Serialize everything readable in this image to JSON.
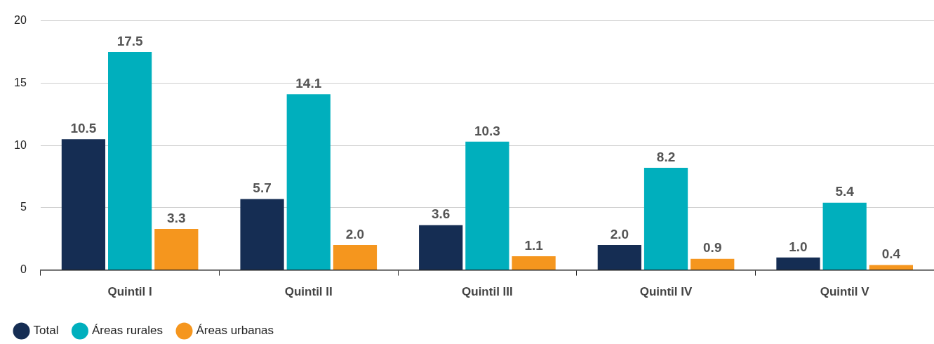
{
  "chart_data": {
    "type": "bar",
    "categories": [
      "Quintil I",
      "Quintil II",
      "Quintil III",
      "Quintil IV",
      "Quintil V"
    ],
    "series": [
      {
        "name": "Total",
        "color": "#152d53",
        "values": [
          10.5,
          5.7,
          3.6,
          2.0,
          1.0
        ],
        "value_labels": [
          "10.5",
          "5.7",
          "3.6",
          "2.0",
          "1.0"
        ]
      },
      {
        "name": "Áreas rurales",
        "color": "#00afbd",
        "values": [
          17.5,
          14.1,
          10.3,
          8.2,
          5.4
        ],
        "value_labels": [
          "17.5",
          "14.1",
          "10.3",
          "8.2",
          "5.4"
        ]
      },
      {
        "name": "Áreas urbanas",
        "color": "#f5961e",
        "values": [
          3.3,
          2.0,
          1.1,
          0.9,
          0.4
        ],
        "value_labels": [
          "3.3",
          "2.0",
          "1.1",
          "0.9",
          "0.4"
        ]
      }
    ],
    "ylim": [
      0,
      20
    ],
    "yticks": [
      0,
      5,
      10,
      15,
      20
    ],
    "grid": "y",
    "legend": "bottom left"
  }
}
